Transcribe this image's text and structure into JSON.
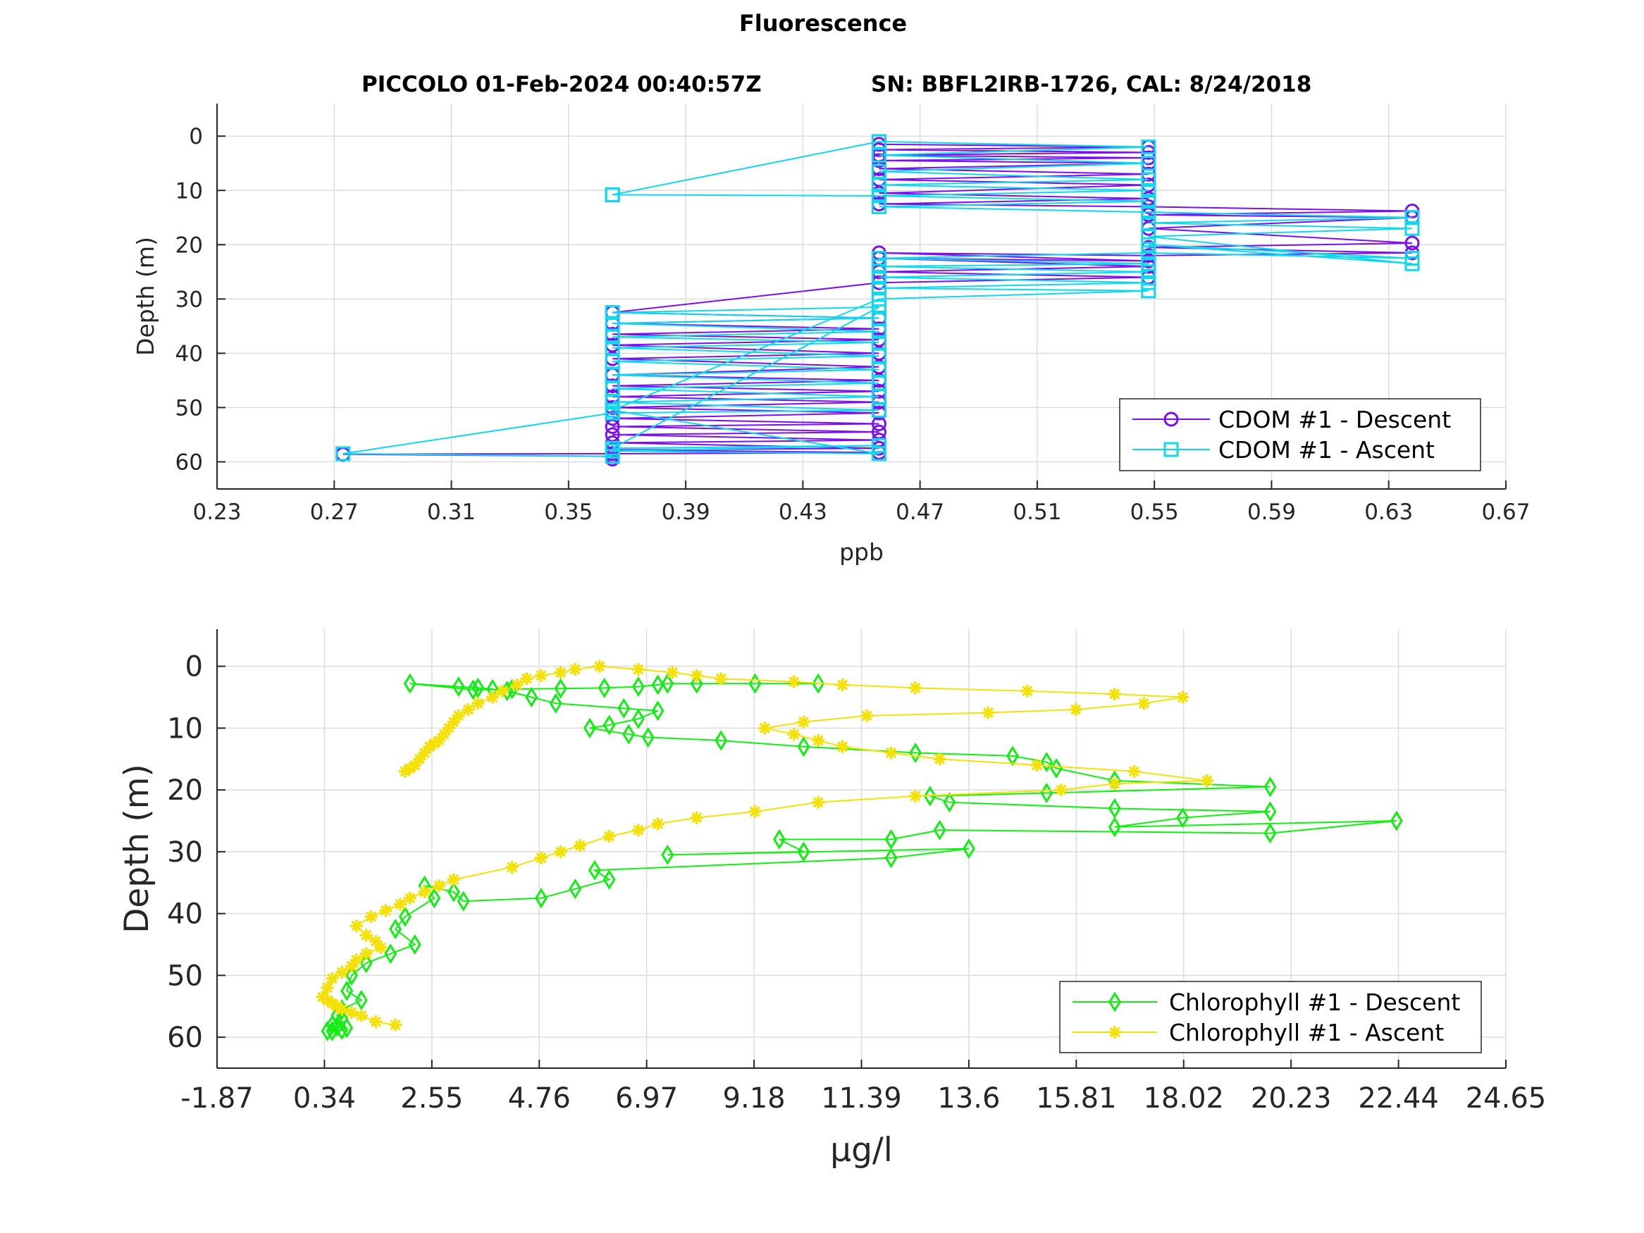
{
  "figure": {
    "title": "Fluorescence",
    "subtitle_left": "PICCOLO 01-Feb-2024 00:40:57Z",
    "subtitle_right": "SN: BBFL2IRB-1726, CAL: 8/24/2018"
  },
  "colors": {
    "cdom_descent": "#7b0ff0",
    "cdom_ascent": "#10d8ec",
    "chl_descent": "#11ee11",
    "chl_ascent": "#f5e10a"
  },
  "chart_data": [
    {
      "type": "line",
      "xlabel": "ppb",
      "ylabel": "Depth (m)",
      "xlim": [
        0.23,
        0.67
      ],
      "ylim": [
        65,
        -6
      ],
      "y_reversed": true,
      "xticks": [
        "0.23",
        "0.27",
        "0.31",
        "0.35",
        "0.39",
        "0.43",
        "0.47",
        "0.51",
        "0.55",
        "0.59",
        "0.63",
        "0.67"
      ],
      "yticks": [
        "0",
        "10",
        "20",
        "30",
        "40",
        "50",
        "60"
      ],
      "grid": true,
      "legend_position": "bottom-right",
      "series": [
        {
          "name": "CDOM #1 - Descent",
          "marker": "circle",
          "x": [
            0.456,
            0.548,
            0.456,
            0.548,
            0.456,
            0.548,
            0.456,
            0.548,
            0.456,
            0.548,
            0.456,
            0.548,
            0.456,
            0.548,
            0.456,
            0.548,
            0.638,
            0.548,
            0.638,
            0.548,
            0.638,
            0.548,
            0.638,
            0.548,
            0.456,
            0.548,
            0.456,
            0.548,
            0.456,
            0.548,
            0.456,
            0.365,
            0.456,
            0.365,
            0.456,
            0.365,
            0.456,
            0.365,
            0.456,
            0.365,
            0.456,
            0.365,
            0.456,
            0.365,
            0.456,
            0.365,
            0.456,
            0.365,
            0.456,
            0.365,
            0.456,
            0.365,
            0.456,
            0.365,
            0.456,
            0.365,
            0.456,
            0.365,
            0.456,
            0.365,
            0.273,
            0.365,
            0.365
          ],
          "y": [
            1.5,
            2.0,
            2.5,
            3.0,
            3.5,
            4.0,
            4.5,
            5.0,
            6.0,
            7.0,
            8.0,
            9.0,
            10.5,
            11.5,
            12.5,
            13.0,
            13.8,
            14.5,
            15.0,
            17.0,
            19.7,
            20.5,
            21.5,
            22.0,
            21.5,
            23.0,
            22.5,
            24.0,
            25.0,
            26.0,
            27.0,
            32.5,
            33.5,
            34.5,
            35.5,
            36.5,
            37.5,
            38.5,
            40.0,
            41.0,
            42.5,
            44.0,
            45.0,
            46.0,
            47.0,
            48.0,
            49.0,
            50.0,
            51.0,
            52.0,
            53.0,
            53.5,
            54.5,
            55.0,
            56.0,
            56.5,
            57.5,
            57.8,
            58.3,
            58.5,
            58.6,
            59.0,
            59.5
          ]
        },
        {
          "name": "CDOM #1 - Ascent",
          "marker": "square",
          "x": [
            0.365,
            0.273,
            0.365,
            0.456,
            0.365,
            0.456,
            0.365,
            0.456,
            0.365,
            0.456,
            0.365,
            0.456,
            0.365,
            0.456,
            0.365,
            0.456,
            0.365,
            0.456,
            0.365,
            0.456,
            0.365,
            0.456,
            0.365,
            0.456,
            0.365,
            0.456,
            0.548,
            0.456,
            0.548,
            0.456,
            0.548,
            0.456,
            0.548,
            0.456,
            0.548,
            0.638,
            0.548,
            0.638,
            0.548,
            0.638,
            0.548,
            0.638,
            0.548,
            0.456,
            0.548,
            0.456,
            0.548,
            0.456,
            0.548,
            0.456,
            0.548,
            0.456,
            0.548,
            0.456,
            0.365,
            0.456,
            0.365
          ],
          "y": [
            59.0,
            58.5,
            51.0,
            50.5,
            49.0,
            48.0,
            46.5,
            45.5,
            44.0,
            43.0,
            41.5,
            40.5,
            39.0,
            38.0,
            37.0,
            36.0,
            34.5,
            33.5,
            32.5,
            31.5,
            57.5,
            57.0,
            58.0,
            58.5,
            50.5,
            30.0,
            28.5,
            28.0,
            27.0,
            26.0,
            25.0,
            24.0,
            23.5,
            22.5,
            21.5,
            22.5,
            20.0,
            23.5,
            18.5,
            17.0,
            16.0,
            15.0,
            14.0,
            13.0,
            12.0,
            11.0,
            10.0,
            9.0,
            8.0,
            6.5,
            5.0,
            3.5,
            2.0,
            1.0,
            10.8,
            11.0,
            10.8
          ]
        }
      ]
    },
    {
      "type": "line",
      "xlabel": "μg/l",
      "ylabel": "Depth (m)",
      "xlim": [
        -1.87,
        24.65
      ],
      "ylim": [
        65,
        -6
      ],
      "y_reversed": true,
      "xticks": [
        "-1.87",
        "0.34",
        "2.55",
        "4.76",
        "6.97",
        "9.18",
        "11.39",
        "13.6",
        "15.81",
        "18.02",
        "20.23",
        "22.44",
        "24.65"
      ],
      "yticks": [
        "0",
        "10",
        "20",
        "30",
        "40",
        "50",
        "60"
      ],
      "grid": true,
      "legend_position": "bottom-right",
      "series": [
        {
          "name": "Chlorophyll #1 - Descent",
          "marker": "diamond",
          "x": [
            10.5,
            9.2,
            8.0,
            7.4,
            7.2,
            6.8,
            6.1,
            5.2,
            4.2,
            3.4,
            2.1,
            3.1,
            3.5,
            3.8,
            4.1,
            4.6,
            5.1,
            6.5,
            7.2,
            6.8,
            6.2,
            5.8,
            6.6,
            7.0,
            8.5,
            10.2,
            12.5,
            14.5,
            15.2,
            15.4,
            16.6,
            19.8,
            15.2,
            12.8,
            13.2,
            16.6,
            19.8,
            18.0,
            16.6,
            22.4,
            19.8,
            13.0,
            12.0,
            9.7,
            10.2,
            7.4,
            13.6,
            12.0,
            5.9,
            6.2,
            5.5,
            4.8,
            3.2,
            3.0,
            2.4,
            2.6,
            2.0,
            1.8,
            2.2,
            1.7,
            1.2,
            0.9,
            0.8,
            1.1,
            0.7,
            0.6,
            0.7,
            0.5,
            0.6,
            0.8,
            0.7,
            0.5,
            0.4
          ],
          "y": [
            2.8,
            2.8,
            2.8,
            2.8,
            3.0,
            3.3,
            3.5,
            3.6,
            3.7,
            3.8,
            2.8,
            3.3,
            3.5,
            3.7,
            4.0,
            5.0,
            6.0,
            6.8,
            7.2,
            8.5,
            9.5,
            10.0,
            11.0,
            11.5,
            12.0,
            13.0,
            14.0,
            14.5,
            15.5,
            16.5,
            18.5,
            19.5,
            20.5,
            21.0,
            22.0,
            23.0,
            23.5,
            24.5,
            26.0,
            25.0,
            27.0,
            26.5,
            28.0,
            28.0,
            30.0,
            30.5,
            29.5,
            31.0,
            33.0,
            34.5,
            36.0,
            37.5,
            38.0,
            36.5,
            35.5,
            37.5,
            40.5,
            42.5,
            45.0,
            46.5,
            48.0,
            50.0,
            52.5,
            54.0,
            55.5,
            56.5,
            57.0,
            58.0,
            58.3,
            58.5,
            58.8,
            59.0,
            59.0
          ]
        },
        {
          "name": "Chlorophyll #1 - Ascent",
          "marker": "asterisk",
          "x": [
            1.8,
            1.4,
            1.1,
            0.9,
            0.7,
            0.6,
            0.5,
            0.4,
            0.3,
            0.4,
            0.5,
            0.7,
            0.9,
            1.0,
            1.2,
            1.5,
            1.4,
            1.2,
            1.0,
            1.3,
            1.6,
            1.9,
            2.1,
            2.4,
            2.7,
            3.0,
            4.2,
            4.8,
            5.2,
            5.6,
            6.2,
            6.8,
            7.2,
            8.0,
            9.2,
            10.5,
            12.5,
            15.5,
            16.6,
            18.5,
            17.0,
            15.0,
            13.0,
            12.0,
            11.0,
            10.5,
            10.0,
            9.4,
            10.2,
            11.5,
            14.0,
            15.8,
            17.2,
            18.0,
            16.6,
            14.8,
            12.5,
            11.0,
            10.0,
            8.5,
            8.0,
            7.5,
            6.8,
            6.0,
            5.5,
            5.2,
            4.8,
            4.5,
            4.3,
            4.0,
            3.8,
            3.5,
            3.3,
            3.1,
            3.0,
            2.9,
            2.8,
            2.7,
            2.6,
            2.5,
            2.4,
            2.3,
            2.2,
            2.1,
            2.0
          ],
          "y": [
            58.0,
            57.5,
            56.5,
            56.0,
            55.5,
            55.0,
            54.5,
            54.0,
            53.5,
            52.0,
            50.5,
            49.5,
            48.5,
            47.5,
            46.5,
            45.5,
            44.5,
            43.5,
            42.0,
            40.5,
            39.5,
            38.5,
            37.5,
            36.5,
            35.5,
            34.5,
            32.5,
            31.0,
            30.0,
            29.0,
            27.5,
            26.5,
            25.5,
            24.5,
            23.5,
            22.0,
            21.0,
            20.0,
            19.0,
            18.5,
            17.0,
            16.0,
            15.0,
            14.0,
            13.0,
            12.0,
            11.0,
            10.0,
            9.0,
            8.0,
            7.5,
            7.0,
            6.0,
            5.0,
            4.5,
            4.0,
            3.5,
            3.0,
            2.5,
            2.0,
            1.5,
            1.0,
            0.5,
            0.0,
            0.5,
            1.0,
            1.5,
            2.0,
            3.0,
            4.0,
            5.0,
            6.0,
            7.0,
            8.0,
            9.0,
            10.0,
            11.0,
            12.0,
            12.5,
            13.0,
            14.0,
            15.0,
            16.0,
            16.5,
            17.0
          ]
        }
      ]
    }
  ]
}
